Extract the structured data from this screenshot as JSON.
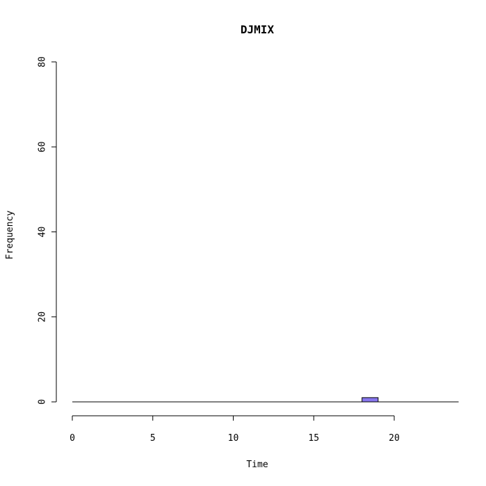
{
  "chart_data": {
    "type": "bar",
    "title": "DJMIX",
    "xlabel": "Time",
    "ylabel": "Frequency",
    "xlim": [
      0,
      24
    ],
    "ylim": [
      0,
      80
    ],
    "x_ticks": [
      0,
      5,
      10,
      15,
      20
    ],
    "y_ticks": [
      0,
      20,
      40,
      60,
      80
    ],
    "x_tick_labels": [
      "0",
      "5",
      "10",
      "15",
      "20"
    ],
    "y_tick_labels": [
      "0",
      "20",
      "40",
      "60",
      "80"
    ],
    "bins": [
      {
        "start": 18,
        "end": 19,
        "count": 1
      }
    ],
    "baseline_range": [
      0,
      24
    ],
    "bar_color": "#8877ee",
    "grid": false,
    "legend": "none"
  }
}
